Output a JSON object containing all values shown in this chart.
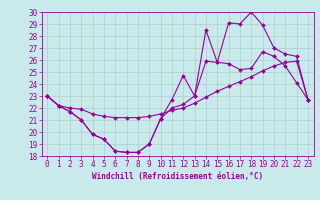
{
  "title": "",
  "xlabel": "Windchill (Refroidissement éolien,°C)",
  "ylabel": "",
  "xlim": [
    -0.5,
    23.5
  ],
  "ylim": [
    18,
    30
  ],
  "xticks": [
    0,
    1,
    2,
    3,
    4,
    5,
    6,
    7,
    8,
    9,
    10,
    11,
    12,
    13,
    14,
    15,
    16,
    17,
    18,
    19,
    20,
    21,
    22,
    23
  ],
  "yticks": [
    18,
    19,
    20,
    21,
    22,
    23,
    24,
    25,
    26,
    27,
    28,
    29,
    30
  ],
  "background_color": "#c8eaea",
  "grid_color": "#b0cccc",
  "line_color": "#990099",
  "line1_x": [
    0,
    1,
    2,
    3,
    4,
    5,
    6,
    7,
    8,
    9,
    10,
    11,
    12,
    13,
    14,
    15,
    16,
    17,
    18,
    19,
    20,
    21,
    22,
    23
  ],
  "line1_y": [
    23.0,
    22.2,
    21.7,
    21.0,
    19.8,
    19.4,
    18.4,
    18.3,
    18.3,
    19.0,
    21.1,
    22.0,
    22.3,
    23.0,
    25.9,
    25.8,
    25.7,
    25.2,
    25.3,
    26.7,
    26.3,
    25.5,
    24.1,
    22.7
  ],
  "line2_x": [
    0,
    1,
    2,
    3,
    4,
    5,
    6,
    7,
    8,
    9,
    10,
    11,
    12,
    13,
    14,
    15,
    16,
    17,
    18,
    19,
    20,
    21,
    22,
    23
  ],
  "line2_y": [
    23.0,
    22.2,
    22.0,
    21.9,
    21.5,
    21.3,
    21.2,
    21.2,
    21.2,
    21.3,
    21.5,
    21.8,
    22.0,
    22.4,
    22.9,
    23.4,
    23.8,
    24.2,
    24.6,
    25.1,
    25.5,
    25.8,
    25.9,
    22.7
  ],
  "line3_x": [
    0,
    1,
    2,
    3,
    4,
    5,
    6,
    7,
    8,
    9,
    10,
    11,
    12,
    13,
    14,
    15,
    16,
    17,
    18,
    19,
    20,
    21,
    22,
    23
  ],
  "line3_y": [
    23.0,
    22.2,
    21.7,
    21.0,
    19.8,
    19.4,
    18.4,
    18.3,
    18.3,
    19.0,
    21.1,
    22.7,
    24.7,
    23.0,
    28.5,
    25.8,
    29.1,
    29.0,
    30.0,
    28.9,
    27.0,
    26.5,
    26.3,
    22.7
  ],
  "tick_fontsize": 5.5,
  "xlabel_fontsize": 5.5,
  "marker_size": 2.0,
  "linewidth": 0.8
}
